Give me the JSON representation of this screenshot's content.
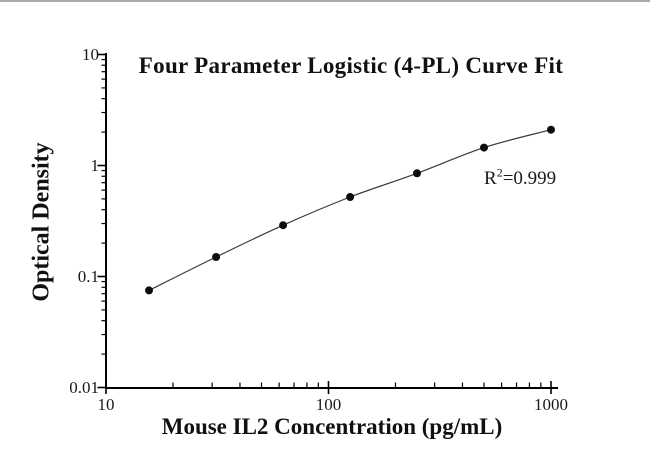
{
  "window": {
    "background": "#ffffff",
    "top_border_color": "#a9a9a9"
  },
  "chart_data": {
    "type": "scatter",
    "title": "Four Parameter Logistic (4-PL) Curve Fit",
    "xlabel": "Mouse IL2 Concentration (pg/mL)",
    "ylabel": "Optical Density",
    "x_scale": "log",
    "y_scale": "log",
    "xlim": [
      10,
      1072
    ],
    "ylim": [
      0.01,
      10
    ],
    "x_major_ticks": [
      10,
      100,
      1000
    ],
    "x_tick_labels": [
      "10",
      "100",
      "1000"
    ],
    "y_major_ticks": [
      0.01,
      0.1,
      1,
      10
    ],
    "y_tick_labels": [
      "0.01",
      "0.1",
      "1",
      "10"
    ],
    "x": [
      15.6,
      31.25,
      62.5,
      125,
      250,
      500,
      1000
    ],
    "y": [
      0.075,
      0.15,
      0.29,
      0.52,
      0.85,
      1.45,
      2.1
    ],
    "annotation": {
      "base": "R",
      "superscript": "2",
      "rest": "=0.999"
    },
    "grid": false,
    "legend": "none",
    "marker_color": "#0d0d0d",
    "line_color": "#3a3a3a",
    "axis_color": "#000000"
  }
}
